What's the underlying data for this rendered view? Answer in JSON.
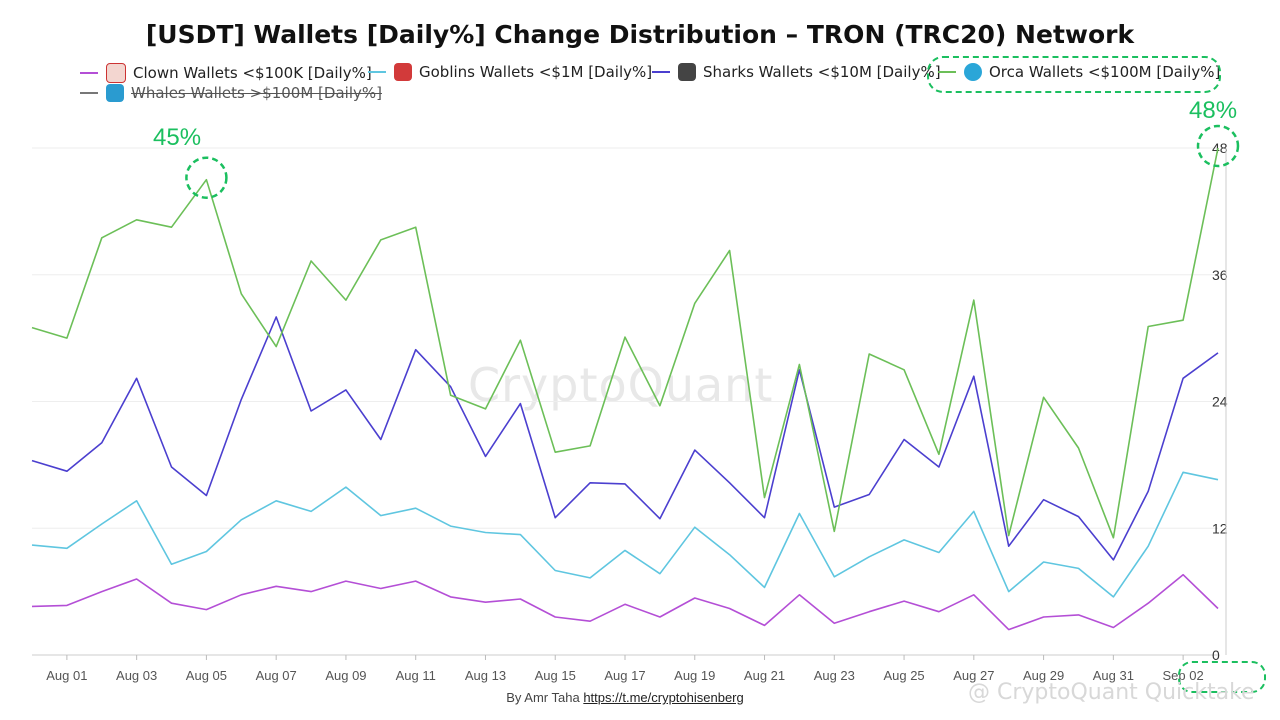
{
  "chart_data": {
    "type": "line",
    "title": "[USDT] Wallets [Daily%] Change Distribution – TRON (TRC20) Network",
    "x_tick_labels": [
      "Aug 01",
      "Aug 03",
      "Aug 05",
      "Aug 07",
      "Aug 09",
      "Aug 11",
      "Aug 13",
      "Aug 15",
      "Aug 17",
      "Aug 19",
      "Aug 21",
      "Aug 23",
      "Aug 25",
      "Aug 27",
      "Aug 29",
      "Aug 31",
      "Sep 02"
    ],
    "y_tick_labels": [
      "0",
      "12",
      "24",
      "36",
      "48"
    ],
    "ylim": [
      0,
      48
    ],
    "y_axis_position": "right",
    "grid": "horizontal",
    "legend_position": "top",
    "series": [
      {
        "name": "Clown Wallets <$100K [Daily%]",
        "color": "#b44fd6",
        "icon": "clown-icon",
        "hidden": false,
        "values": [
          4.6,
          4.7,
          6.0,
          7.2,
          4.9,
          4.3,
          5.7,
          6.5,
          6.0,
          7.0,
          6.3,
          7.0,
          5.5,
          5.0,
          5.3,
          3.6,
          3.2,
          4.8,
          3.6,
          5.4,
          4.4,
          2.8,
          5.7,
          3.0,
          4.1,
          5.1,
          4.1,
          5.7,
          2.4,
          3.6,
          3.8,
          2.6,
          4.9,
          7.6,
          4.4
        ]
      },
      {
        "name": "Goblins Wallets <$1M [Daily%]",
        "color": "#5fc6e0",
        "icon": "goblin-icon",
        "hidden": false,
        "values": [
          10.4,
          10.1,
          12.4,
          14.6,
          8.6,
          9.8,
          12.8,
          14.6,
          13.6,
          15.9,
          13.2,
          13.9,
          12.2,
          11.6,
          11.4,
          8.0,
          7.3,
          9.9,
          7.7,
          12.1,
          9.5,
          6.4,
          13.4,
          7.4,
          9.3,
          10.9,
          9.7,
          13.6,
          6.0,
          8.8,
          8.2,
          5.5,
          10.3,
          17.3,
          16.6
        ]
      },
      {
        "name": "Sharks Wallets <$10M [Daily%]",
        "color": "#4b3fcf",
        "icon": "shark-icon",
        "hidden": false,
        "values": [
          18.4,
          17.4,
          20.1,
          26.2,
          17.8,
          15.1,
          24.2,
          32.0,
          23.1,
          25.1,
          20.4,
          28.9,
          25.4,
          18.8,
          23.8,
          13.0,
          16.3,
          16.2,
          12.9,
          19.4,
          16.3,
          13.0,
          27.0,
          14.0,
          15.2,
          20.4,
          17.8,
          26.4,
          10.3,
          14.7,
          13.1,
          9.0,
          15.5,
          26.2,
          28.6
        ]
      },
      {
        "name": "Orca Wallets <$100M [Daily%]",
        "color": "#6cbf58",
        "icon": "orca-icon",
        "hidden": false,
        "values": [
          31.0,
          30.0,
          39.5,
          41.2,
          40.5,
          45.0,
          34.2,
          29.2,
          37.3,
          33.6,
          39.3,
          40.5,
          24.6,
          23.3,
          29.8,
          19.2,
          19.8,
          30.1,
          23.6,
          33.3,
          38.3,
          14.9,
          27.5,
          11.7,
          28.5,
          27.0,
          19.0,
          33.6,
          11.3,
          24.4,
          19.6,
          11.1,
          31.1,
          31.7,
          48.0
        ]
      },
      {
        "name": "Whales Wallets >$100M [Daily%]",
        "color": "#777777",
        "icon": "whale-icon",
        "hidden": true,
        "values": []
      }
    ],
    "annotations": [
      "45%",
      "48%"
    ]
  },
  "credit_prefix": "By Amr Taha",
  "credit_link": "https://t.me/cryptohisenberg",
  "watermark": "CryptoQuant",
  "watermark_bottom": "@ CryptoQuant Quicktake"
}
